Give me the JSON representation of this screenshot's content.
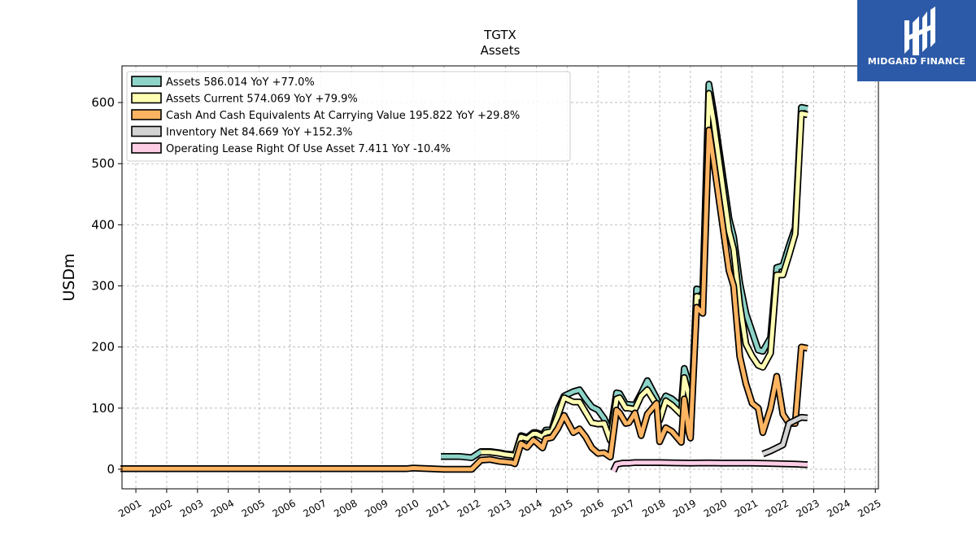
{
  "chart_data": {
    "type": "line",
    "title": "TGTX",
    "subtitle": "Assets",
    "xlabel": "",
    "ylabel": "USDm",
    "xlim": [
      2000.55,
      2025.1
    ],
    "ylim": [
      -32,
      660
    ],
    "yticks": [
      0,
      100,
      200,
      300,
      400,
      500,
      600
    ],
    "xticks": [
      "2001",
      "2002",
      "2003",
      "2004",
      "2005",
      "2006",
      "2007",
      "2008",
      "2009",
      "2010",
      "2011",
      "2012",
      "2013",
      "2014",
      "2015",
      "2016",
      "2017",
      "2018",
      "2019",
      "2020",
      "2021",
      "2022",
      "2023",
      "2024",
      "2025"
    ],
    "grid": true,
    "legend_position": "top-left",
    "series": [
      {
        "name": "Assets",
        "legend": "Assets  586.014 YoY +77.0%",
        "color": "#8dd3c7",
        "points": [
          [
            2010.9,
            21
          ],
          [
            2011.5,
            21
          ],
          [
            2011.9,
            19
          ],
          [
            2012.2,
            29
          ],
          [
            2012.5,
            29
          ],
          [
            2012.8,
            27
          ],
          [
            2013.0,
            25
          ],
          [
            2013.2,
            24
          ],
          [
            2013.3,
            22
          ],
          [
            2013.5,
            55
          ],
          [
            2013.7,
            52
          ],
          [
            2013.9,
            60
          ],
          [
            2014.0,
            60
          ],
          [
            2014.2,
            56
          ],
          [
            2014.3,
            64
          ],
          [
            2014.5,
            65
          ],
          [
            2014.7,
            98
          ],
          [
            2014.9,
            120
          ],
          [
            2015.2,
            127
          ],
          [
            2015.4,
            130
          ],
          [
            2015.6,
            115
          ],
          [
            2015.8,
            102
          ],
          [
            2016.0,
            97
          ],
          [
            2016.2,
            83
          ],
          [
            2016.4,
            60
          ],
          [
            2016.6,
            125
          ],
          [
            2016.7,
            124
          ],
          [
            2016.9,
            106
          ],
          [
            2017.0,
            106
          ],
          [
            2017.2,
            105
          ],
          [
            2017.4,
            124
          ],
          [
            2017.6,
            145
          ],
          [
            2017.9,
            116
          ],
          [
            2018.0,
            100
          ],
          [
            2018.2,
            120
          ],
          [
            2018.4,
            115
          ],
          [
            2018.7,
            102
          ],
          [
            2018.8,
            165
          ],
          [
            2018.95,
            140
          ],
          [
            2019.0,
            58
          ],
          [
            2019.2,
            295
          ],
          [
            2019.4,
            292
          ],
          [
            2019.6,
            630
          ],
          [
            2019.75,
            585
          ],
          [
            2020.25,
            410
          ],
          [
            2020.4,
            380
          ],
          [
            2020.6,
            305
          ],
          [
            2020.8,
            255
          ],
          [
            2021.0,
            225
          ],
          [
            2021.2,
            195
          ],
          [
            2021.35,
            193
          ],
          [
            2021.6,
            215
          ],
          [
            2021.8,
            330
          ],
          [
            2022.0,
            333
          ],
          [
            2022.2,
            365
          ],
          [
            2022.4,
            395
          ],
          [
            2022.6,
            592
          ],
          [
            2022.8,
            590
          ]
        ]
      },
      {
        "name": "Assets Current",
        "legend": "Assets Current  574.069 YoY +79.9%",
        "color": "#ffffb3",
        "points": [
          [
            2012.2,
            28
          ],
          [
            2012.5,
            28
          ],
          [
            2012.8,
            26
          ],
          [
            2013.0,
            24
          ],
          [
            2013.2,
            23
          ],
          [
            2013.3,
            21
          ],
          [
            2013.5,
            53
          ],
          [
            2013.7,
            50
          ],
          [
            2013.9,
            58
          ],
          [
            2014.0,
            58
          ],
          [
            2014.2,
            53
          ],
          [
            2014.3,
            60
          ],
          [
            2014.5,
            62
          ],
          [
            2014.7,
            88
          ],
          [
            2014.9,
            117
          ],
          [
            2015.2,
            110
          ],
          [
            2015.4,
            110
          ],
          [
            2015.6,
            93
          ],
          [
            2015.8,
            76
          ],
          [
            2016.0,
            74
          ],
          [
            2016.2,
            75
          ],
          [
            2016.4,
            47
          ],
          [
            2016.6,
            115
          ],
          [
            2016.7,
            117
          ],
          [
            2016.9,
            100
          ],
          [
            2017.0,
            100
          ],
          [
            2017.2,
            98
          ],
          [
            2017.4,
            120
          ],
          [
            2017.6,
            130
          ],
          [
            2017.9,
            105
          ],
          [
            2018.0,
            80
          ],
          [
            2018.2,
            112
          ],
          [
            2018.4,
            105
          ],
          [
            2018.7,
            90
          ],
          [
            2018.8,
            150
          ],
          [
            2018.95,
            120
          ],
          [
            2019.0,
            55
          ],
          [
            2019.2,
            283
          ],
          [
            2019.4,
            280
          ],
          [
            2019.6,
            615
          ],
          [
            2019.75,
            570
          ],
          [
            2020.25,
            390
          ],
          [
            2020.4,
            360
          ],
          [
            2020.6,
            270
          ],
          [
            2020.8,
            205
          ],
          [
            2021.0,
            185
          ],
          [
            2021.2,
            170
          ],
          [
            2021.35,
            167
          ],
          [
            2021.6,
            190
          ],
          [
            2021.8,
            318
          ],
          [
            2022.0,
            318
          ],
          [
            2022.2,
            350
          ],
          [
            2022.4,
            385
          ],
          [
            2022.6,
            582
          ],
          [
            2022.8,
            580
          ]
        ]
      },
      {
        "name": "Cash And Cash Equivalents At Carrying Value",
        "legend": "Cash And Cash Equivalents At Carrying Value  195.822 YoY +29.8%",
        "color": "#fdb462",
        "points": [
          [
            2000.5,
            1
          ],
          [
            2009.8,
            1
          ],
          [
            2010.0,
            2
          ],
          [
            2010.5,
            1
          ],
          [
            2011.0,
            0
          ],
          [
            2011.4,
            0
          ],
          [
            2011.9,
            0
          ],
          [
            2012.2,
            15
          ],
          [
            2012.5,
            16
          ],
          [
            2012.8,
            13
          ],
          [
            2013.0,
            12
          ],
          [
            2013.2,
            11
          ],
          [
            2013.3,
            9
          ],
          [
            2013.5,
            42
          ],
          [
            2013.7,
            36
          ],
          [
            2013.9,
            48
          ],
          [
            2014.0,
            44
          ],
          [
            2014.2,
            35
          ],
          [
            2014.3,
            50
          ],
          [
            2014.5,
            52
          ],
          [
            2014.7,
            67
          ],
          [
            2014.9,
            88
          ],
          [
            2015.2,
            60
          ],
          [
            2015.4,
            66
          ],
          [
            2015.6,
            53
          ],
          [
            2015.8,
            35
          ],
          [
            2016.0,
            26
          ],
          [
            2016.2,
            27
          ],
          [
            2016.4,
            20
          ],
          [
            2016.6,
            97
          ],
          [
            2016.7,
            92
          ],
          [
            2016.9,
            75
          ],
          [
            2017.0,
            76
          ],
          [
            2017.2,
            92
          ],
          [
            2017.4,
            55
          ],
          [
            2017.6,
            90
          ],
          [
            2017.9,
            108
          ],
          [
            2018.0,
            45
          ],
          [
            2018.2,
            68
          ],
          [
            2018.4,
            62
          ],
          [
            2018.7,
            44
          ],
          [
            2018.8,
            115
          ],
          [
            2018.95,
            60
          ],
          [
            2019.0,
            51
          ],
          [
            2019.2,
            265
          ],
          [
            2019.4,
            255
          ],
          [
            2019.6,
            555
          ],
          [
            2019.75,
            505
          ],
          [
            2020.25,
            325
          ],
          [
            2020.4,
            300
          ],
          [
            2020.6,
            185
          ],
          [
            2020.8,
            140
          ],
          [
            2021.0,
            108
          ],
          [
            2021.2,
            100
          ],
          [
            2021.35,
            60
          ],
          [
            2021.6,
            100
          ],
          [
            2021.8,
            152
          ],
          [
            2022.0,
            90
          ],
          [
            2022.2,
            75
          ],
          [
            2022.4,
            75
          ],
          [
            2022.6,
            200
          ],
          [
            2022.8,
            198
          ]
        ]
      },
      {
        "name": "Inventory Net",
        "legend": "Inventory Net  84.669 YoY +152.3%",
        "color": "#d3d3d3",
        "points": [
          [
            2021.35,
            25
          ],
          [
            2021.6,
            30
          ],
          [
            2021.8,
            35
          ],
          [
            2022.0,
            40
          ],
          [
            2022.2,
            75
          ],
          [
            2022.4,
            80
          ],
          [
            2022.6,
            85
          ],
          [
            2022.8,
            84
          ]
        ]
      },
      {
        "name": "Operating Lease Right Of Use Asset",
        "legend": "Operating Lease Right Of Use Asset  7.411 YoY -10.4%",
        "color": "#fccde5",
        "points": [
          [
            2016.5,
            -3
          ],
          [
            2016.6,
            8
          ],
          [
            2016.8,
            10
          ],
          [
            2017.0,
            10
          ],
          [
            2017.2,
            11
          ],
          [
            2017.4,
            11
          ],
          [
            2017.7,
            11
          ],
          [
            2018.0,
            11
          ],
          [
            2018.5,
            10.5
          ],
          [
            2019.0,
            10
          ],
          [
            2019.6,
            10.5
          ],
          [
            2020.0,
            10
          ],
          [
            2020.5,
            10
          ],
          [
            2021.0,
            10
          ],
          [
            2021.5,
            9.5
          ],
          [
            2022.0,
            9
          ],
          [
            2022.4,
            8.5
          ],
          [
            2022.8,
            7.4
          ]
        ]
      }
    ]
  },
  "logo": {
    "text": "MIDGARD FINANCE"
  }
}
